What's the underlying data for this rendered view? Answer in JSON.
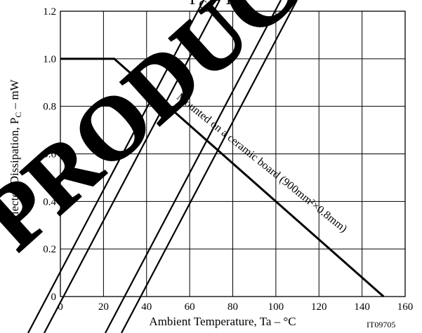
{
  "chart_data": {
    "type": "line",
    "title": "PC – Ta",
    "xlabel": "Ambient Temperature, Ta  –  °C",
    "ylabel": "Collector Dissipation, PC  –  mW",
    "xlim": [
      0,
      160
    ],
    "ylim": [
      0,
      1.2
    ],
    "xticks": [
      "0",
      "20",
      "40",
      "60",
      "80",
      "100",
      "120",
      "140",
      "160"
    ],
    "yticks": [
      "0",
      "0.2",
      "0.4",
      "0.6",
      "0.8",
      "1.0",
      "1.2"
    ],
    "grid": true,
    "series": [
      {
        "x": [
          0,
          25,
          150
        ],
        "y": [
          1.0,
          1.0,
          0
        ]
      }
    ],
    "annotation": "Mounted on a ceramic board (900mm²×0.8mm)",
    "figure_code": "IT09705",
    "watermark": "PRODUCT"
  }
}
